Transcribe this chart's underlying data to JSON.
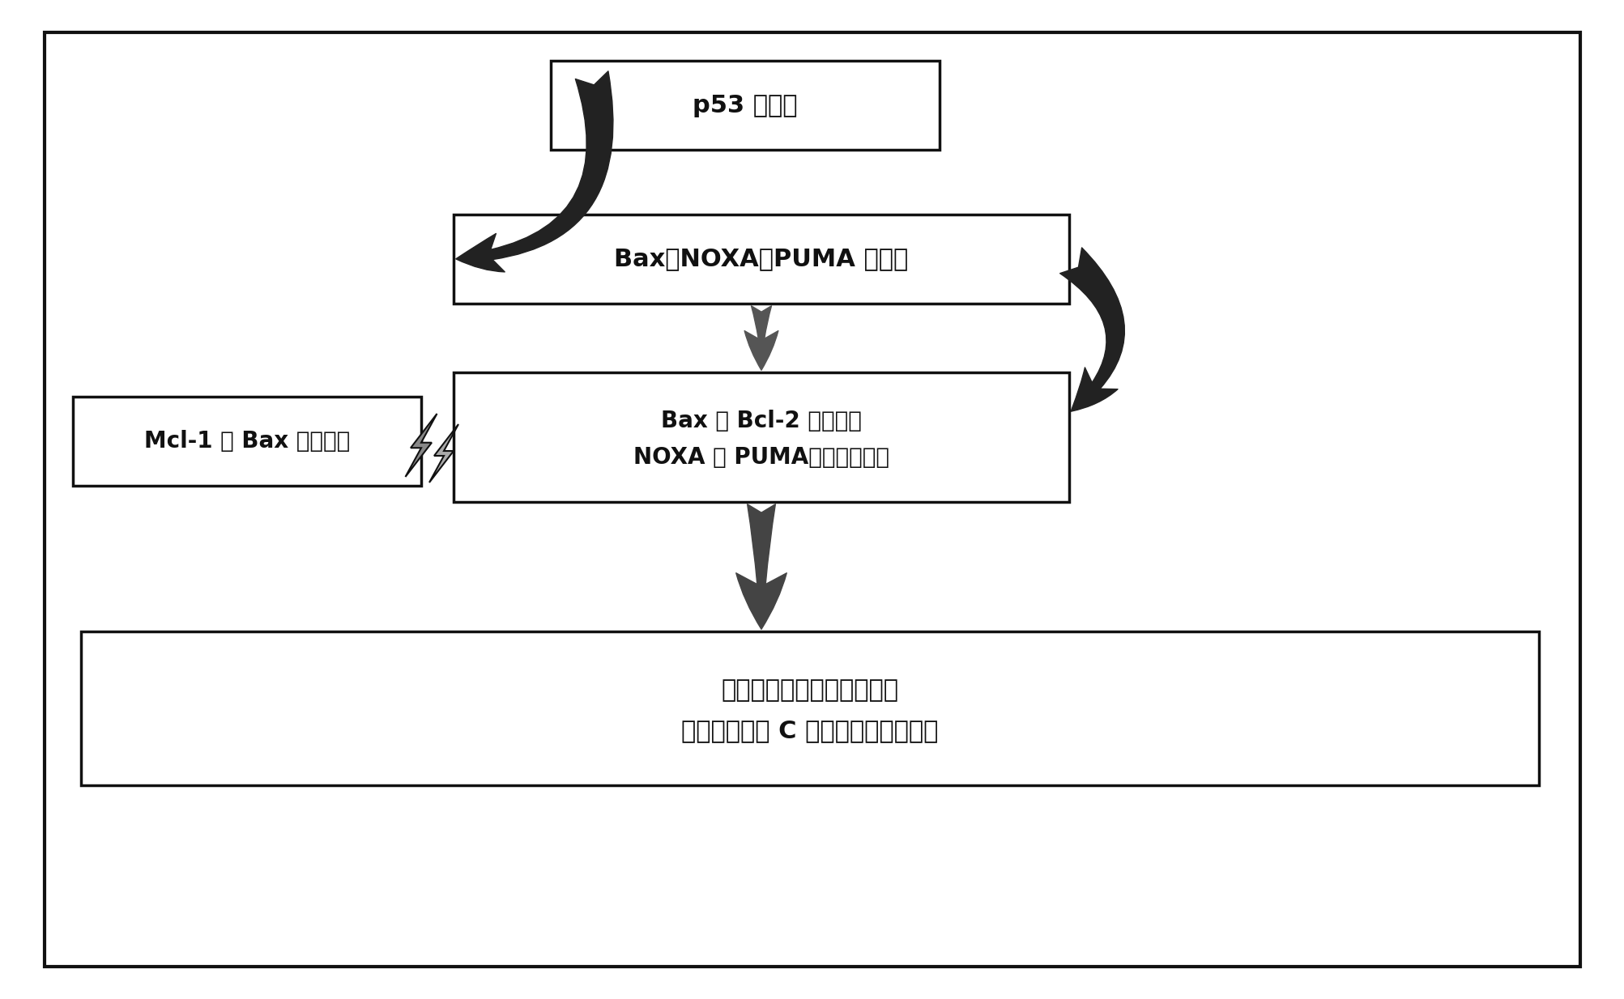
{
  "bg_color": "#ffffff",
  "outer_fill": "#ffffff",
  "box_fill": "#ffffff",
  "border_color": "#111111",
  "text_color": "#111111",
  "arrow_color": "#222222",
  "box1_text": "p53 的刺激",
  "box2_text": "Bax、NOXA、PUMA 的上调",
  "box3_text": "Mcl-1 与 Bax 杂二聚化",
  "box4_line1": "Bax 与 Bcl-2 二聚化，",
  "box4_line2": "NOXA 和 PUMA结合线粒体膜",
  "box5_line1": "线粒体膜的孔通透性提高，",
  "box5_line2": "导致细胞色素 C 释放和最终诱导凋亡",
  "fs_large": 22,
  "fs_medium": 20,
  "fs_small": 18
}
